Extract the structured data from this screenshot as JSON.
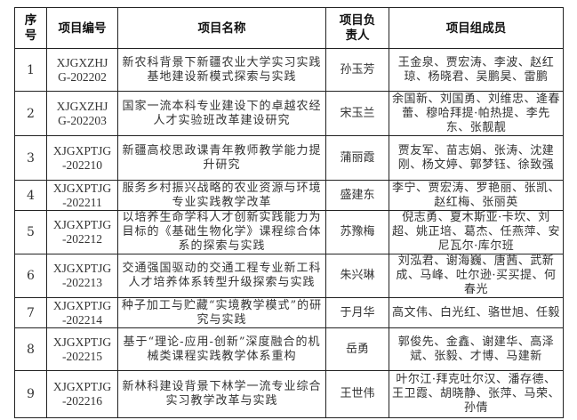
{
  "headers": [
    "序号",
    "项目编号",
    "项目名称",
    "项目负责人",
    "项目组成员"
  ],
  "rows": [
    {
      "no": "1",
      "code": "XJGXZHJG-202202",
      "name": "新农科背景下新疆农业大学实习实践基地建设新模式探索与实践",
      "leader": "孙玉芳",
      "members": "王金泉、贾宏涛、李波、赵红琼、杨晓君、吴鹏昊、雷鹏"
    },
    {
      "no": "2",
      "code": "XJGXZHJG-202203",
      "name": "国家一流本科专业建设下的卓越农经人才实验班改革建设研究",
      "leader": "宋玉兰",
      "members": "余国新、刘国勇、刘维忠、逄春蕾、穆哈拜提·帕热提、李先东、张靓靓"
    },
    {
      "no": "3",
      "code": "XJGXPTJG-202210",
      "name": "新疆高校思政课青年教师教学能力提升研究",
      "leader": "蒲丽霞",
      "members": "贾友军、苗志娟、张涛、沈建刚、杨文婷、郭梦钰、徐致强"
    },
    {
      "no": "4",
      "code": "XJGXPTJG-202211",
      "name": "服务乡村振兴战略的农业资源与环境专业实践教学改革",
      "leader": "盛建东",
      "members": "李宁、贾宏涛、罗艳丽、张凯、赵红梅、张丽英"
    },
    {
      "no": "5",
      "code": "XJGXPTJG-202212",
      "name": "以培养生命学科人才创新实践能力为目标的《基础生物化学》课程综合体系的探索与实践",
      "leader": "苏豫梅",
      "members": "倪志勇、夏木斯亚·卡坎、刘超、姚正培、葛杰、任燕萍、安尼瓦尔·库尔班"
    },
    {
      "no": "6",
      "code": "XJGXPTJG-202213",
      "name": "交通强国驱动的交通工程专业新工科人才培养体系转型升级探索与实践",
      "leader": "朱兴琳",
      "members": "刘泓君、谢海巍、唐茜、武新成、马峰、吐尔逊·买买提、何春光"
    },
    {
      "no": "7",
      "code": "XJGXPTJG-202214",
      "name": "种子加工与贮藏“实境教学模式”的研究与实践",
      "leader": "于月华",
      "members": "高文伟、白光红、骆世旭、任毅"
    },
    {
      "no": "8",
      "code": "XJGXPTJG-202215",
      "name": "基于“理论-应用-创新”深度融合的机械类课程实践教学体系重构",
      "leader": "岳勇",
      "members": "郭俊先、金鑫、谢建华、高泽斌、张毅、才博、马建新"
    },
    {
      "no": "9",
      "code": "XJGXPTJG-202216",
      "name": "新林科建设背景下林学一流专业综合实习教学改革与实践",
      "leader": "王世伟",
      "members": "叶尔江·拜克吐尔汉、潘存德、王卫霞、胡晓静、张萍、马荣、孙倩"
    }
  ]
}
